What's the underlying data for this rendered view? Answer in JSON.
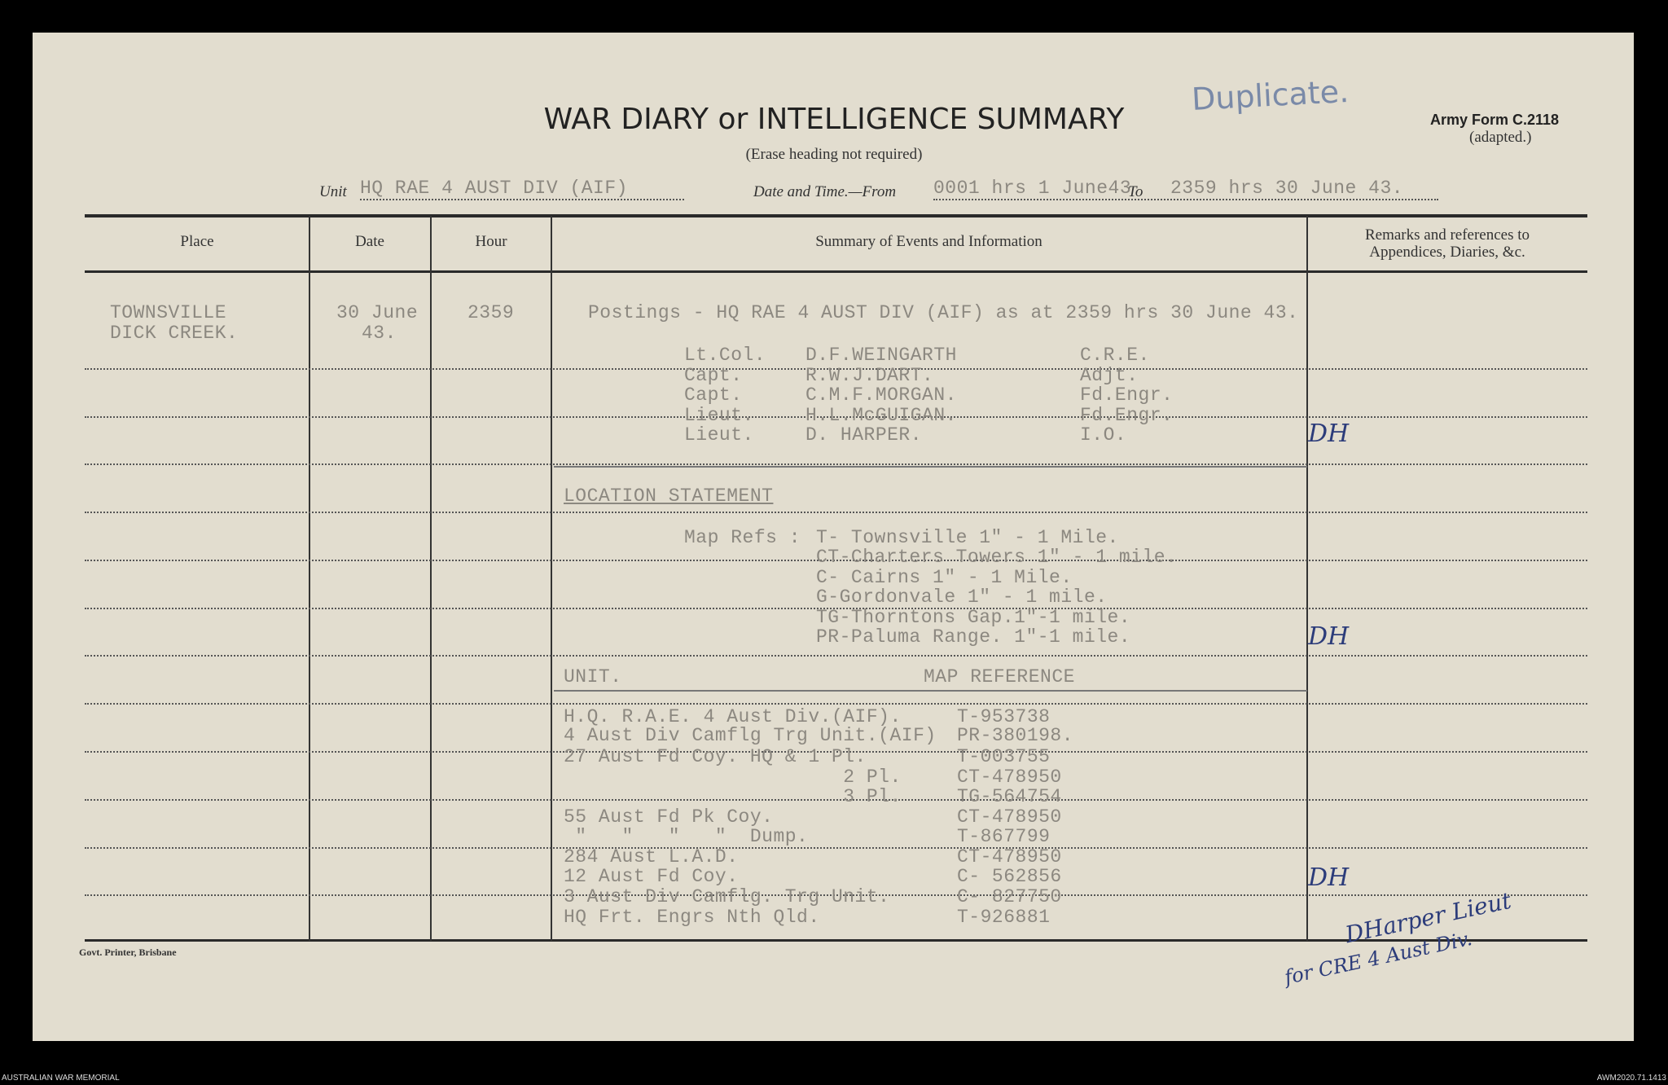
{
  "header": {
    "title": "WAR DIARY or INTELLIGENCE SUMMARY",
    "subtitle": "(Erase heading not required)",
    "duplicate": "Duplicate.",
    "form": "Army Form C.2118",
    "form_note": "(adapted.)",
    "unit_label": "Unit",
    "unit": "HQ RAE 4 AUST DIV (AIF)",
    "date_label": "Date and Time.—From",
    "from": "0001 hrs 1 June43",
    "to_label": "To",
    "to": "2359 hrs 30 June 43."
  },
  "columns": [
    "Place",
    "Date",
    "Hour",
    "Summary of Events and Information",
    "Remarks and references to",
    "Appendices, Diaries, &c."
  ],
  "entry": {
    "place": [
      "TOWNSVILLE",
      "DICK CREEK."
    ],
    "date": [
      "30 June",
      "43."
    ],
    "hour": "2359",
    "postings_title": "Postings - HQ RAE 4 AUST DIV (AIF) as at 2359 hrs 30 June 43.",
    "postings": [
      {
        "rank": "Lt.Col.",
        "name": "D.F.WEINGARTH",
        "role": "C.R.E."
      },
      {
        "rank": "Capt.",
        "name": "R.W.J.DART.",
        "role": "Adjt."
      },
      {
        "rank": "Capt.",
        "name": "C.M.F.MORGAN.",
        "role": "Fd.Engr."
      },
      {
        "rank": "Lieut.",
        "name": "H.L.McGUIGAN.",
        "role": "Fd.Engr."
      },
      {
        "rank": "Lieut.",
        "name": "D. HARPER.",
        "role": "I.O."
      }
    ],
    "location_title": "LOCATION STATEMENT",
    "map_refs_label": "Map Refs :",
    "map_refs": [
      "T- Townsville 1\" - 1 Mile.",
      "CT-Charters Towers 1\" - 1 mile.",
      "C- Cairns 1\" - 1 Mile.",
      "G-Gordonvale 1\" - 1 mile.",
      "TG-Thorntons Gap.1\"-1 mile.",
      "PR-Paluma Range. 1\"-1 mile."
    ],
    "unit_header": "UNIT.",
    "ref_header": "MAP REFERENCE",
    "units": [
      {
        "unit": "H.Q. R.A.E. 4 Aust Div.(AIF).",
        "ref": "T-953738"
      },
      {
        "unit": "4 Aust Div Camflg Trg Unit.(AIF)",
        "ref": "PR-380198."
      },
      {
        "unit": "27 Aust Fd Coy. HQ & 1 Pl.",
        "ref": "T-003755"
      },
      {
        "unit": "                        2 Pl.",
        "ref": "CT-478950"
      },
      {
        "unit": "                        3 Pl.",
        "ref": "TG-564754"
      },
      {
        "unit": "55 Aust Fd Pk Coy.",
        "ref": "CT-478950"
      },
      {
        "unit": " \"   \"   \"   \"  Dump.",
        "ref": "T-867799"
      },
      {
        "unit": "284 Aust L.A.D.",
        "ref": "CT-478950"
      },
      {
        "unit": "12 Aust Fd Coy.",
        "ref": "C- 562856"
      },
      {
        "unit": "3 Aust Div Camflg. Trg Unit.",
        "ref": "C- 827750"
      },
      {
        "unit": "HQ Frt. Engrs Nth Qld.",
        "ref": "T-926881"
      }
    ]
  },
  "remarks": {
    "initials": "DH",
    "signature": "DHarper Lieut",
    "for": "for CRE 4 Aust Div."
  },
  "printer": "Govt. Printer, Brisbane",
  "footer": {
    "left": "AUSTRALIAN WAR MEMORIAL",
    "right": "AWM2020.71.1413"
  }
}
